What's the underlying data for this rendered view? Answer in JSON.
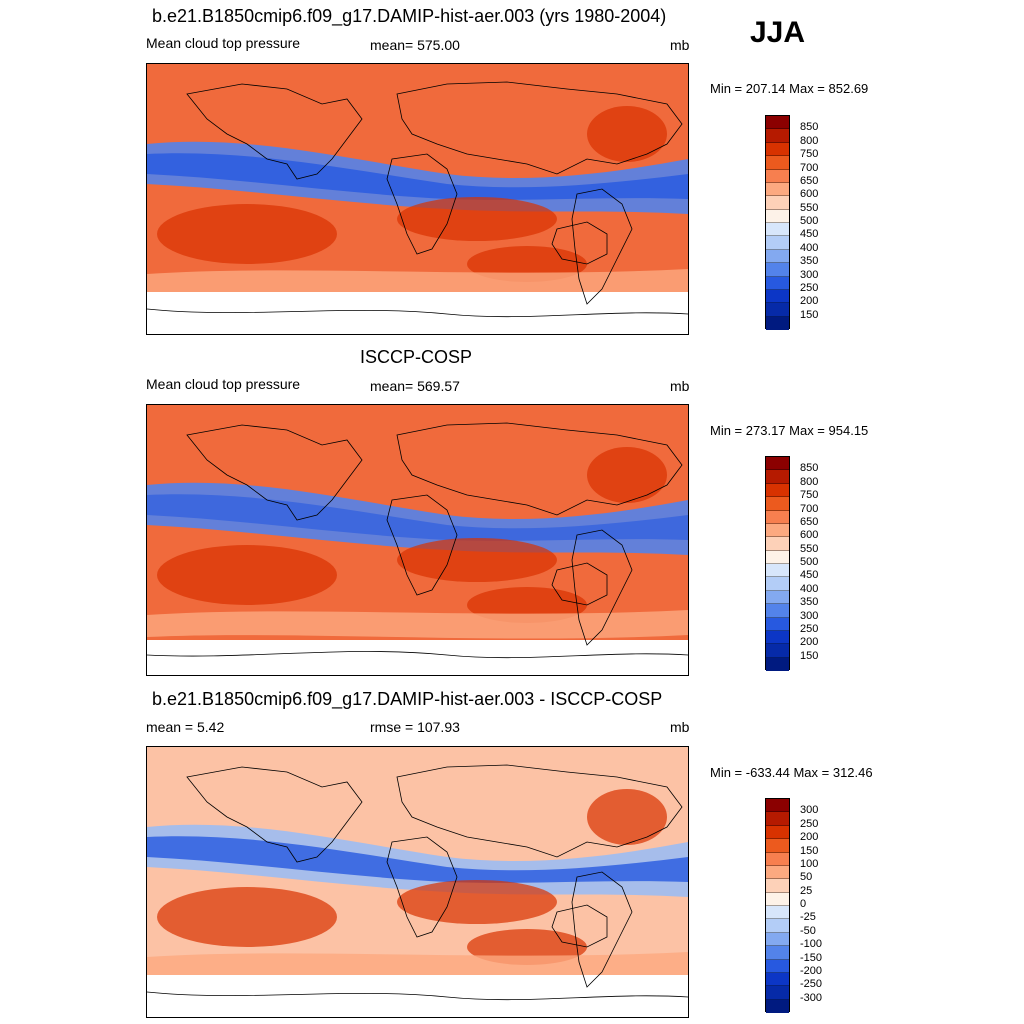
{
  "season": "JJA",
  "panels": [
    {
      "title": "b.e21.B1850cmip6.f09_g17.DAMIP-hist-aer.003 (yrs 1980-2004)",
      "left_label": "Mean cloud top pressure",
      "center_label": "mean= 575.00",
      "units": "mb",
      "minmax": "Min = 207.14 Max = 852.69",
      "colorbar_labels": [
        "850",
        "800",
        "750",
        "700",
        "650",
        "600",
        "550",
        "500",
        "450",
        "400",
        "350",
        "300",
        "250",
        "200",
        "150"
      ]
    },
    {
      "title": "ISCCP-COSP",
      "left_label": "Mean cloud top pressure",
      "center_label": "mean= 569.57",
      "units": "mb",
      "minmax": "Min = 273.17 Max = 954.15",
      "colorbar_labels": [
        "850",
        "800",
        "750",
        "700",
        "650",
        "600",
        "550",
        "500",
        "450",
        "400",
        "350",
        "300",
        "250",
        "200",
        "150"
      ]
    },
    {
      "title": "b.e21.B1850cmip6.f09_g17.DAMIP-hist-aer.003 - ISCCP-COSP",
      "left_label": "mean =   5.42",
      "center_label": "rmse = 107.93",
      "units": "mb",
      "minmax": "Min = -633.44 Max = 312.46",
      "colorbar_labels": [
        "300",
        "250",
        "200",
        "150",
        "100",
        "50",
        "25",
        "0",
        "-25",
        "-50",
        "-100",
        "-150",
        "-200",
        "-250",
        "-300"
      ]
    }
  ],
  "colors": {
    "palette": [
      "#8b0000",
      "#b51a00",
      "#d83200",
      "#ec5a1e",
      "#f77f4f",
      "#fca980",
      "#fdd1b8",
      "#fdf2e8",
      "#d7e6fb",
      "#b3cdf7",
      "#83a9f0",
      "#5383ea",
      "#2759e0",
      "#0c36c6",
      "#062aa8",
      "#001a80"
    ],
    "ocean": "#ee6a40",
    "land_outline": "#000000"
  }
}
